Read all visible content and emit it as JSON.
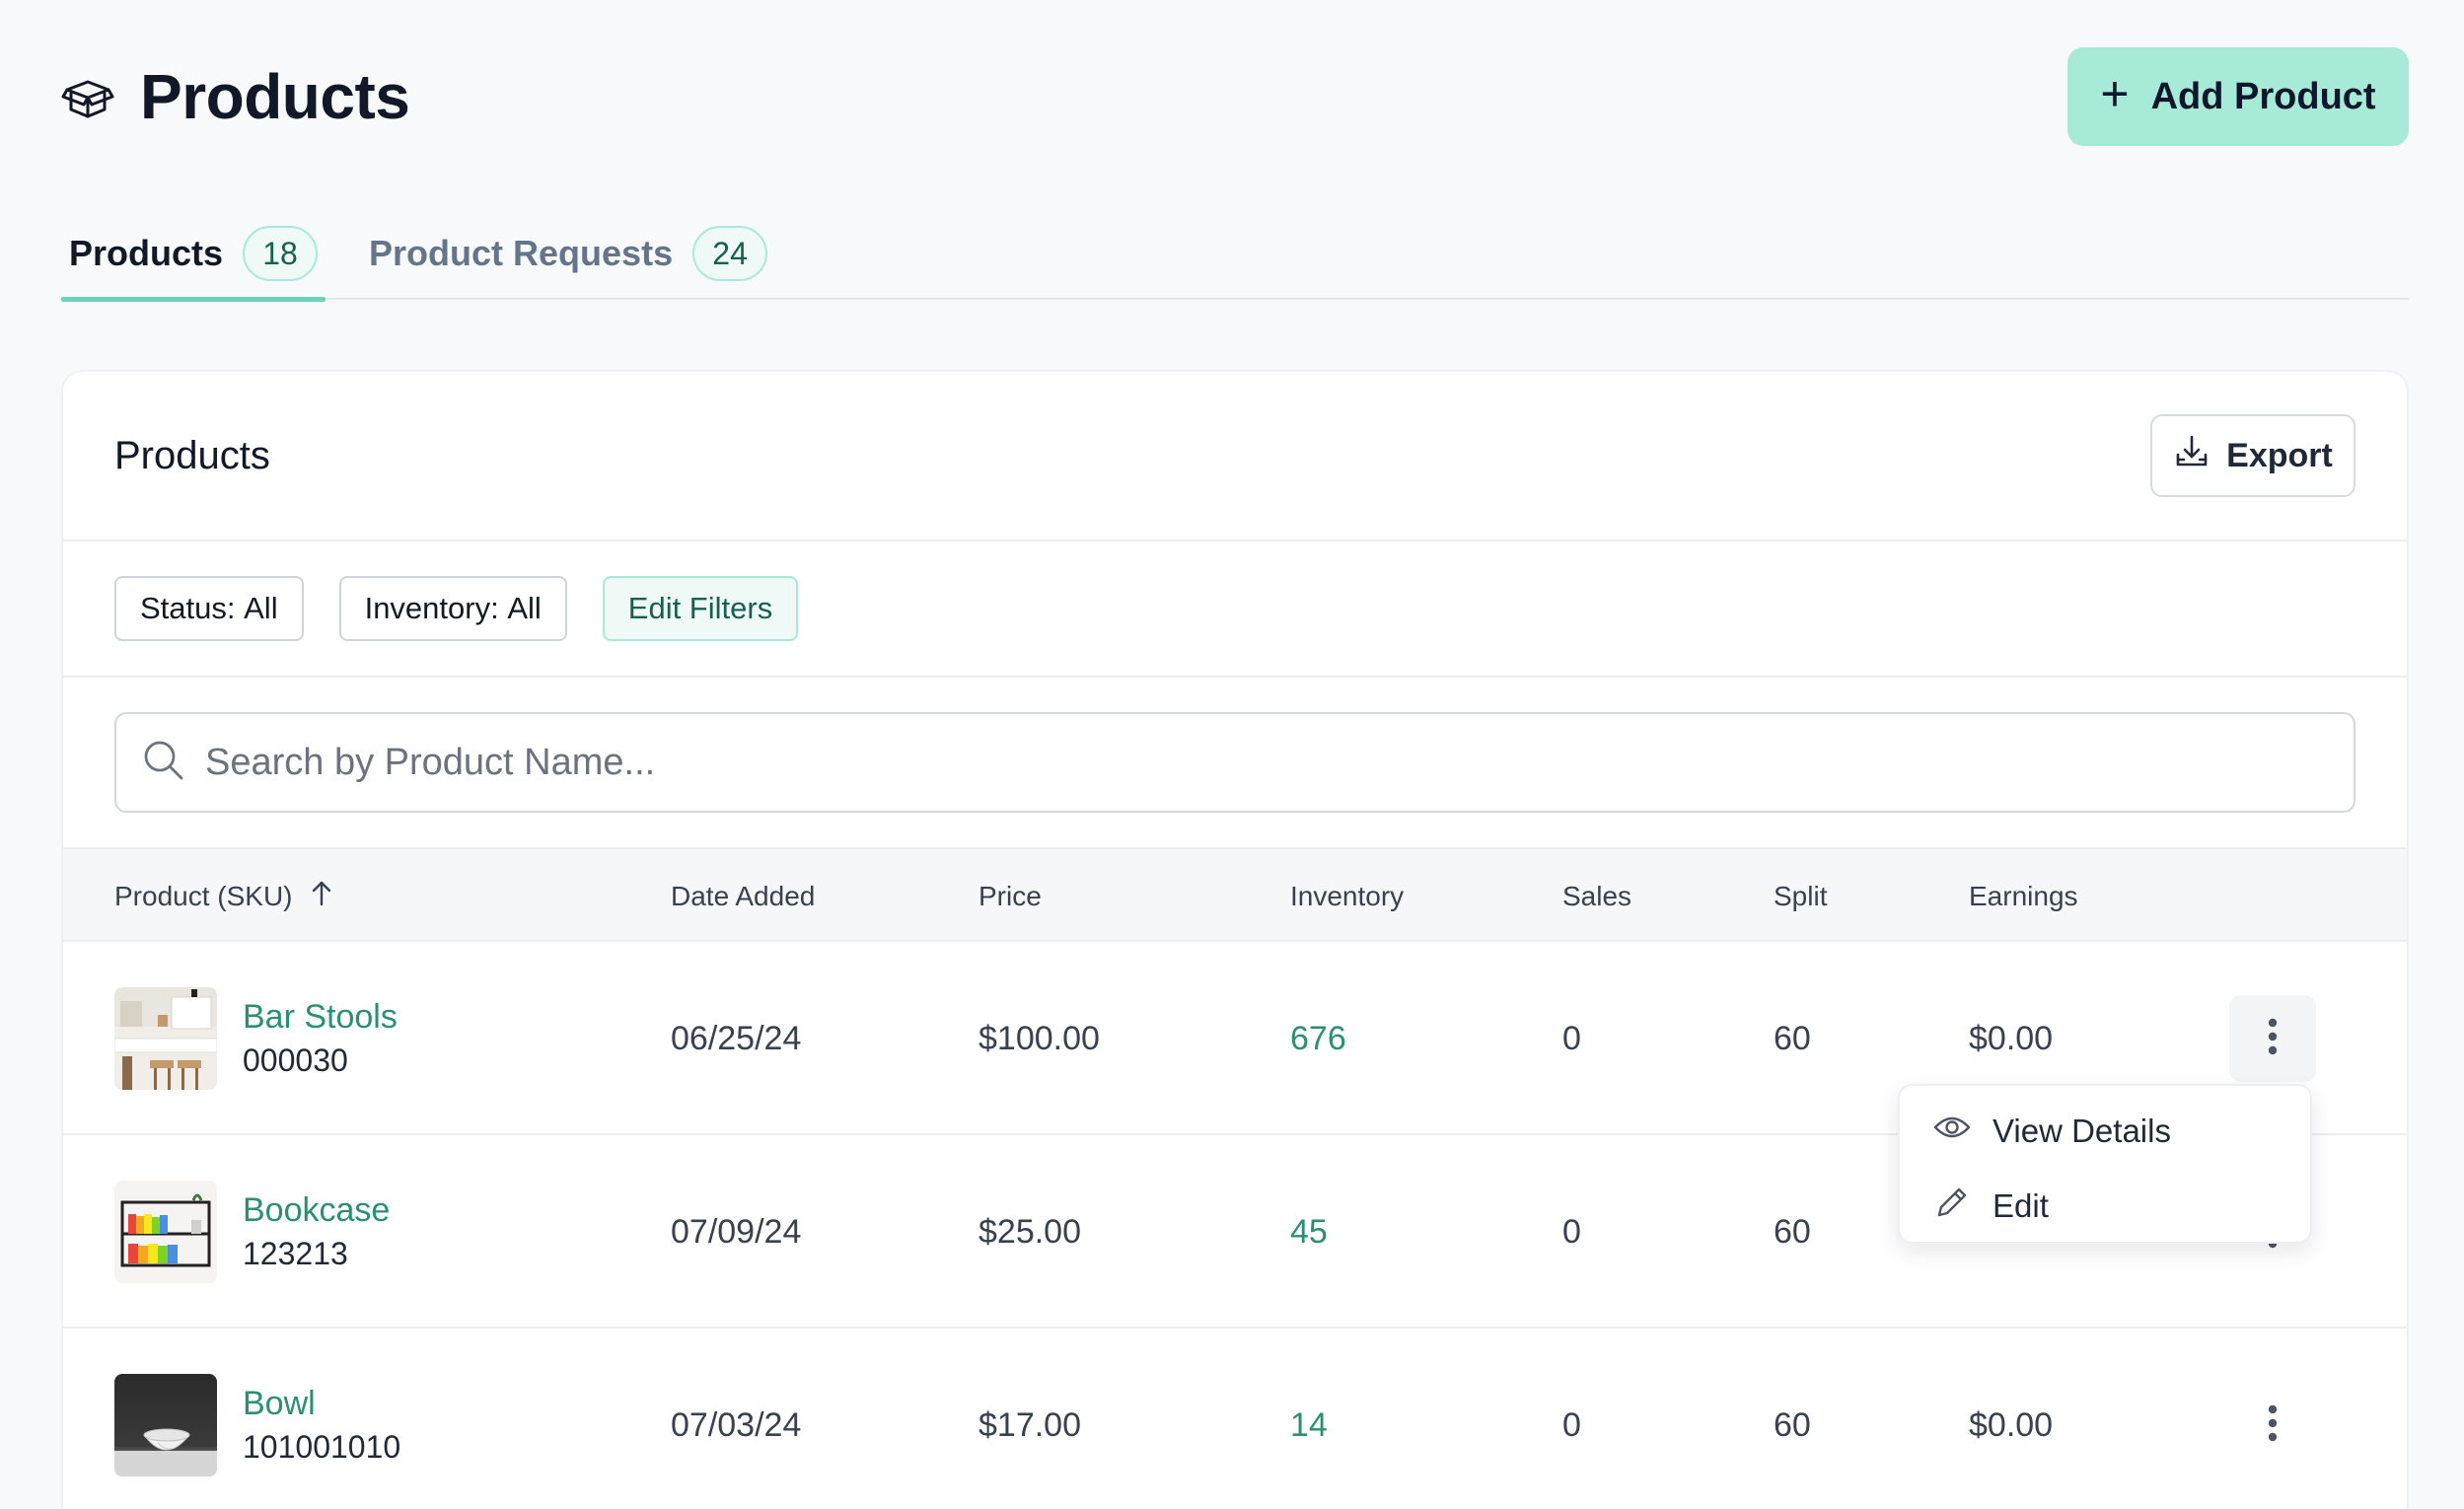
{
  "header": {
    "title": "Products",
    "add_button_label": "Add Product"
  },
  "tabs": [
    {
      "label": "Products",
      "count": "18",
      "active": true
    },
    {
      "label": "Product Requests",
      "count": "24",
      "active": false
    }
  ],
  "card": {
    "title": "Products",
    "export_label": "Export"
  },
  "filters": {
    "status_key": "Status:",
    "status_value": "All",
    "inventory_key": "Inventory:",
    "inventory_value": "All",
    "edit_label": "Edit Filters"
  },
  "search": {
    "placeholder": "Search by Product Name..."
  },
  "table": {
    "columns": [
      "Product (SKU)",
      "Date Added",
      "Price",
      "Inventory",
      "Sales",
      "Split",
      "Earnings"
    ],
    "rows": [
      {
        "name": "Bar Stools",
        "sku": "000030",
        "date": "06/25/24",
        "price": "$100.00",
        "inventory": "676",
        "sales": "0",
        "split": "60",
        "earnings": "$0.00"
      },
      {
        "name": "Bookcase",
        "sku": "123213",
        "date": "07/09/24",
        "price": "$25.00",
        "inventory": "45",
        "sales": "0",
        "split": "60",
        "earnings": ""
      },
      {
        "name": "Bowl",
        "sku": "101001010",
        "date": "07/03/24",
        "price": "$17.00",
        "inventory": "14",
        "sales": "0",
        "split": "60",
        "earnings": "$0.00"
      }
    ]
  },
  "row_menu": {
    "view_label": "View Details",
    "edit_label": "Edit"
  },
  "colors": {
    "accent": "#a7ead8",
    "accent_text": "#2b8f74",
    "background": "#f8f9fb"
  }
}
